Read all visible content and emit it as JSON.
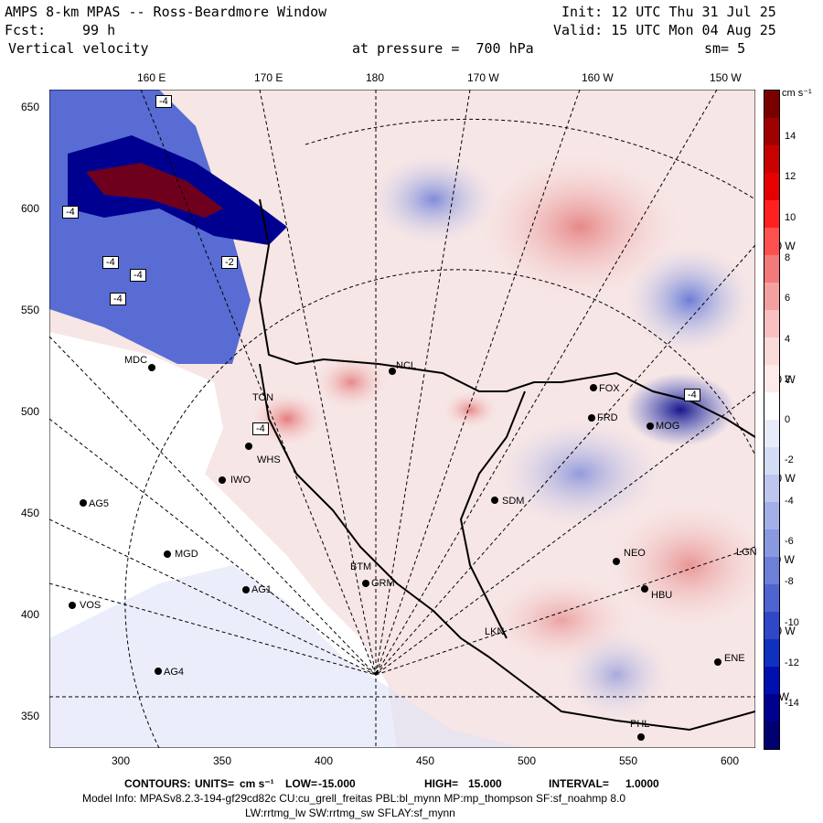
{
  "header": {
    "title": "AMPS 8-km MPAS -- Ross-Beardmore Window",
    "init": "Init: 12 UTC Thu 31 Jul 25",
    "fcst_label": "Fcst:",
    "fcst_value": "99 h",
    "valid": "Valid: 15 UTC Mon 04 Aug 25",
    "field": "Vertical velocity",
    "pressure": "at pressure =  700 hPa",
    "smoothing": "sm= 5"
  },
  "top_axis": [
    "160 E",
    "170 E",
    "180",
    "170 W",
    "160 W",
    "150 W"
  ],
  "left_axis": [
    "650",
    "600",
    "550",
    "500",
    "450",
    "400",
    "350"
  ],
  "bottom_axis": [
    "300",
    "350",
    "400",
    "450",
    "500",
    "550",
    "600"
  ],
  "colorbar": {
    "units": "cm s⁻¹",
    "labels": [
      "14",
      "12",
      "10",
      "8",
      "6",
      "4",
      "2",
      "0",
      "-2",
      "-4",
      "-6",
      "-8",
      "-10",
      "-12",
      "-14"
    ],
    "colors": [
      "#7a0000",
      "#a00000",
      "#c80000",
      "#e60000",
      "#ff2020",
      "#ff5050",
      "#f27a7a",
      "#f5a0a0",
      "#f8c0c0",
      "#fbdada",
      "#fdeaea",
      "#ffffff",
      "#e8ecfa",
      "#d4dcf5",
      "#bcc6ef",
      "#a3b0e8",
      "#8a98e0",
      "#6e7fd8",
      "#5064d0",
      "#3048c8",
      "#1030c0",
      "#0010b0",
      "#000090",
      "#000070"
    ]
  },
  "right_labels": [
    "140 W",
    "130 W",
    "120 W",
    "110 W",
    "100 W",
    "90 W"
  ],
  "stations": [
    "MDC",
    "NCL",
    "FOX",
    "FRD",
    "MOG",
    "TON",
    "WHS",
    "IWO",
    "AG5",
    "SDM",
    "MGD",
    "BTM",
    "GRM",
    "AG1",
    "NEO",
    "VOS",
    "AG4",
    "HBU",
    "LKN",
    "ENE",
    "PHL",
    "LGN"
  ],
  "box_labels": [
    "-4",
    "-4",
    "-4",
    "-4",
    "-2",
    "-4",
    "-4",
    "-4"
  ],
  "footer": {
    "contours_label": "CONTOURS:",
    "units_label": "UNITS=",
    "units": "cm s⁻¹",
    "low_label": "LOW=",
    "low": "-15.000",
    "high_label": "HIGH=",
    "high": "15.000",
    "interval_label": "INTERVAL=",
    "interval": "1.0000",
    "model_info": "Model Info: MPASv8.2.3-194-gf29cd82c CU:cu_grell_freitas PBL:bl_mynn MP:mp_thompson SF:sf_noahmp 8.0",
    "model_info2": "LW:rrtmg_lw SW:rrtmg_sw SFLAY:sf_mynn"
  }
}
